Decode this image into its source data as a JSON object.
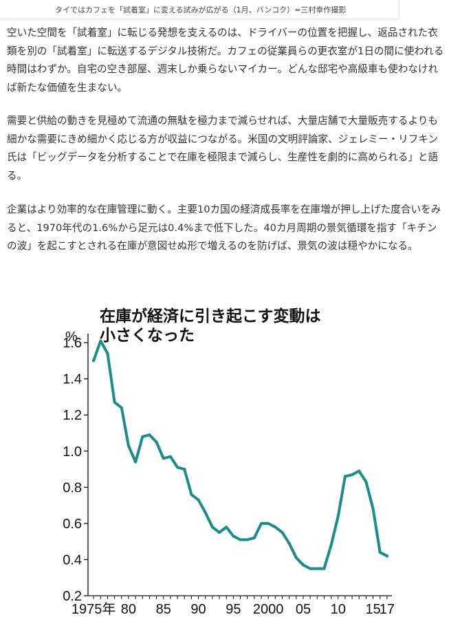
{
  "caption": "タイではカフェを「試着室」に変える試みが広がる（1月、バンコク）=三村幸作撮影",
  "paragraphs": [
    "空いた空間を「試着室」に転じる発想を支えるのは、ドライバーの位置を把握し、返品された衣類を別の「試着室」に転送するデジタル技術だ。カフェの従業員らの更衣室が1日の間に使われる時間はわずか。自宅の空き部屋、週末しか乗らないマイカー。どんな邸宅や高級車も使わなければ新たな価値を生まない。",
    "需要と供給の動きを見極めて流通の無駄を極力まで減らせれば、大量店舗で大量販売するよりも細かな需要にきめ細かく応じる方が収益につながる。米国の文明評論家、ジェレミー・リフキン氏は「ビッグデータを分析することで在庫を極限まで減らし、生産性を劇的に高められる」と語る。",
    "企業はより効率的な在庫管理に動く。主要10カ国の経済成長率を在庫増が押し上げた度合いをみると、1970年代の1.6%から足元は0.4%まで低下した。40カ月周期の景気循環を指す「キチンの波」を起こすとされる在庫が意図せぬ形で増えるのを防げば、景気の波は穏やかになる。"
  ],
  "chart_data": {
    "type": "line",
    "title": [
      "在庫が経済に引き起こす変動は",
      "小さくなった"
    ],
    "ylabel": "%",
    "ylim": [
      0.2,
      1.65
    ],
    "xlim": [
      1974.2,
      2017.7
    ],
    "yticks": [
      "0.2",
      "0.4",
      "0.6",
      "0.8",
      "1.0",
      "1.2",
      "1.4",
      "1.6"
    ],
    "xticks": [
      {
        "x": 1975,
        "label": "1975年"
      },
      {
        "x": 1980,
        "label": "80"
      },
      {
        "x": 1985,
        "label": "85"
      },
      {
        "x": 1990,
        "label": "90"
      },
      {
        "x": 1995,
        "label": "95"
      },
      {
        "x": 2000,
        "label": "2000"
      },
      {
        "x": 2005,
        "label": "05"
      },
      {
        "x": 2010,
        "label": "10"
      },
      {
        "x": 2015,
        "label": "15"
      },
      {
        "x": 2017,
        "label": "17"
      }
    ],
    "grid": false,
    "line_color": "#1b8c8c",
    "series": [
      {
        "x": [
          1975,
          1976,
          1977,
          1978,
          1979,
          1980,
          1981,
          1982,
          1983,
          1984,
          1985,
          1986,
          1987,
          1988,
          1989,
          1990,
          1991,
          1992,
          1993,
          1994,
          1995,
          1996,
          1997,
          1998,
          1999,
          2000,
          2001,
          2002,
          2003,
          2004,
          2005,
          2006,
          2007,
          2008,
          2009,
          2010,
          2011,
          2012,
          2013,
          2014,
          2015,
          2016,
          2017
        ],
        "values": [
          1.5,
          1.61,
          1.54,
          1.27,
          1.24,
          1.03,
          0.94,
          1.08,
          1.09,
          1.05,
          0.96,
          0.97,
          0.91,
          0.9,
          0.76,
          0.73,
          0.66,
          0.58,
          0.55,
          0.58,
          0.53,
          0.51,
          0.51,
          0.52,
          0.6,
          0.6,
          0.58,
          0.55,
          0.49,
          0.41,
          0.37,
          0.35,
          0.35,
          0.35,
          0.48,
          0.64,
          0.86,
          0.87,
          0.89,
          0.83,
          0.68,
          0.44,
          0.42
        ]
      }
    ]
  }
}
